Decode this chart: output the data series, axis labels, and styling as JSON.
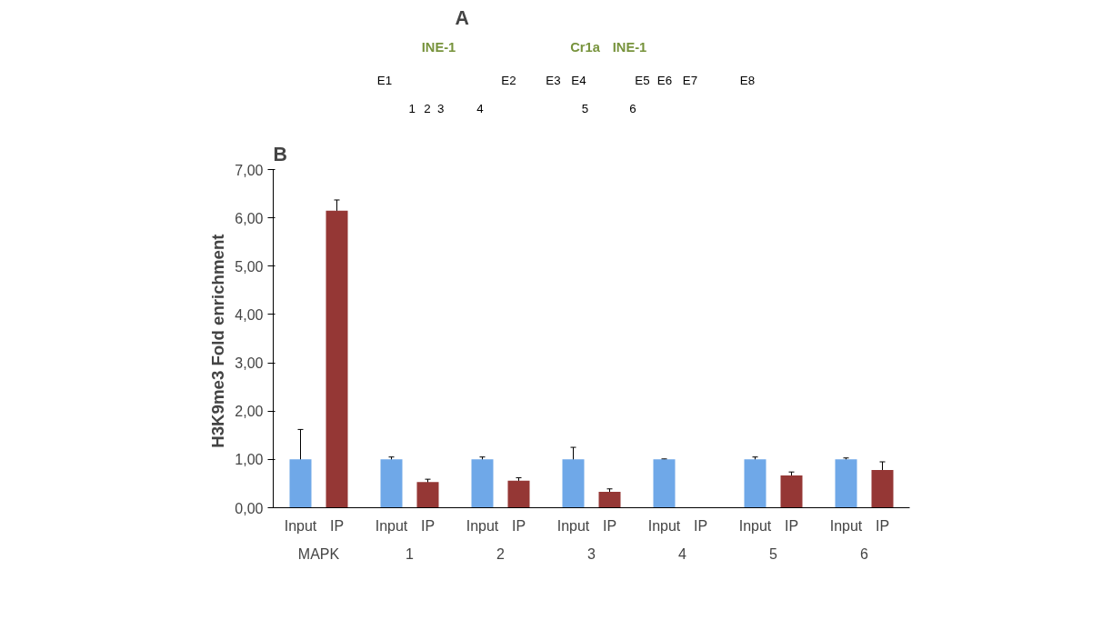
{
  "chart_data": [
    {
      "type": "other",
      "title": "A",
      "annotations": [
        "INE-1",
        "Cr1a",
        "INE-1",
        "E1",
        "E2",
        "E3",
        "E4",
        "E5",
        "E6",
        "E7",
        "E8",
        "1",
        "2",
        "3",
        "4",
        "5",
        "6"
      ]
    },
    {
      "type": "bar",
      "title": "B",
      "ylabel": "H3K9me3  Fold enrichment",
      "categories": [
        "MAPK",
        "1",
        "2",
        "3",
        "4",
        "5",
        "6"
      ],
      "series": [
        {
          "name": "Input",
          "color": "#6fa8e8",
          "values": [
            1.0,
            1.0,
            1.0,
            1.0,
            1.0,
            1.0,
            1.0
          ],
          "errors": [
            0.62,
            0.05,
            0.05,
            0.25,
            0.01,
            0.05,
            0.03
          ]
        },
        {
          "name": "IP",
          "color": "#953735",
          "values": [
            6.15,
            0.53,
            0.56,
            0.33,
            null,
            0.67,
            0.78
          ],
          "errors": [
            0.22,
            0.06,
            0.06,
            0.06,
            null,
            0.07,
            0.17
          ]
        }
      ],
      "ylim": [
        0,
        7
      ],
      "yticks": [
        {
          "value": 0,
          "label": "0,00"
        },
        {
          "value": 1,
          "label": "1,00"
        },
        {
          "value": 2,
          "label": "2,00"
        },
        {
          "value": 3,
          "label": "3,00"
        },
        {
          "value": 4,
          "label": "4,00"
        },
        {
          "value": 5,
          "label": "5,00"
        },
        {
          "value": 6,
          "label": "6,00"
        },
        {
          "value": 7,
          "label": "7,00"
        }
      ],
      "grid": false
    }
  ]
}
